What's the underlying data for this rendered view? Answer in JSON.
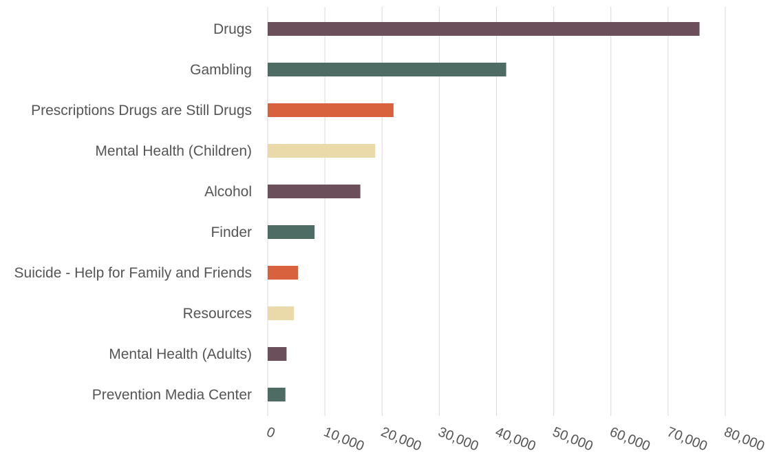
{
  "chart_data": {
    "type": "bar",
    "orientation": "horizontal",
    "title": "",
    "xlabel": "",
    "ylabel": "",
    "categories": [
      "Drugs",
      "Gambling",
      "Prescriptions Drugs are Still Drugs",
      "Mental Health (Children)",
      "Alcohol",
      "Finder",
      "Suicide - Help for Family and Friends",
      "Resources",
      "Mental Health (Adults)",
      "Prevention Media Center"
    ],
    "values": [
      75500,
      41700,
      22000,
      18800,
      16200,
      8200,
      5300,
      4600,
      3300,
      3100
    ],
    "bar_colors": [
      "#6b4f5b",
      "#4e6b64",
      "#d9623e",
      "#ead9a9",
      "#6b4f5b",
      "#4e6b64",
      "#d9623e",
      "#ead9a9",
      "#6b4f5b",
      "#4e6b64"
    ],
    "xlim": [
      0,
      80000
    ],
    "xticks": [
      0,
      10000,
      20000,
      30000,
      40000,
      50000,
      60000,
      70000,
      80000
    ],
    "xtick_labels": [
      "0",
      "10,000",
      "20,000",
      "30,000",
      "40,000",
      "50,000",
      "60,000",
      "70,000",
      "80,000"
    ],
    "grid": true,
    "legend": "none",
    "colors": {
      "text": "#555555",
      "grid": "#d9d9d9"
    }
  }
}
